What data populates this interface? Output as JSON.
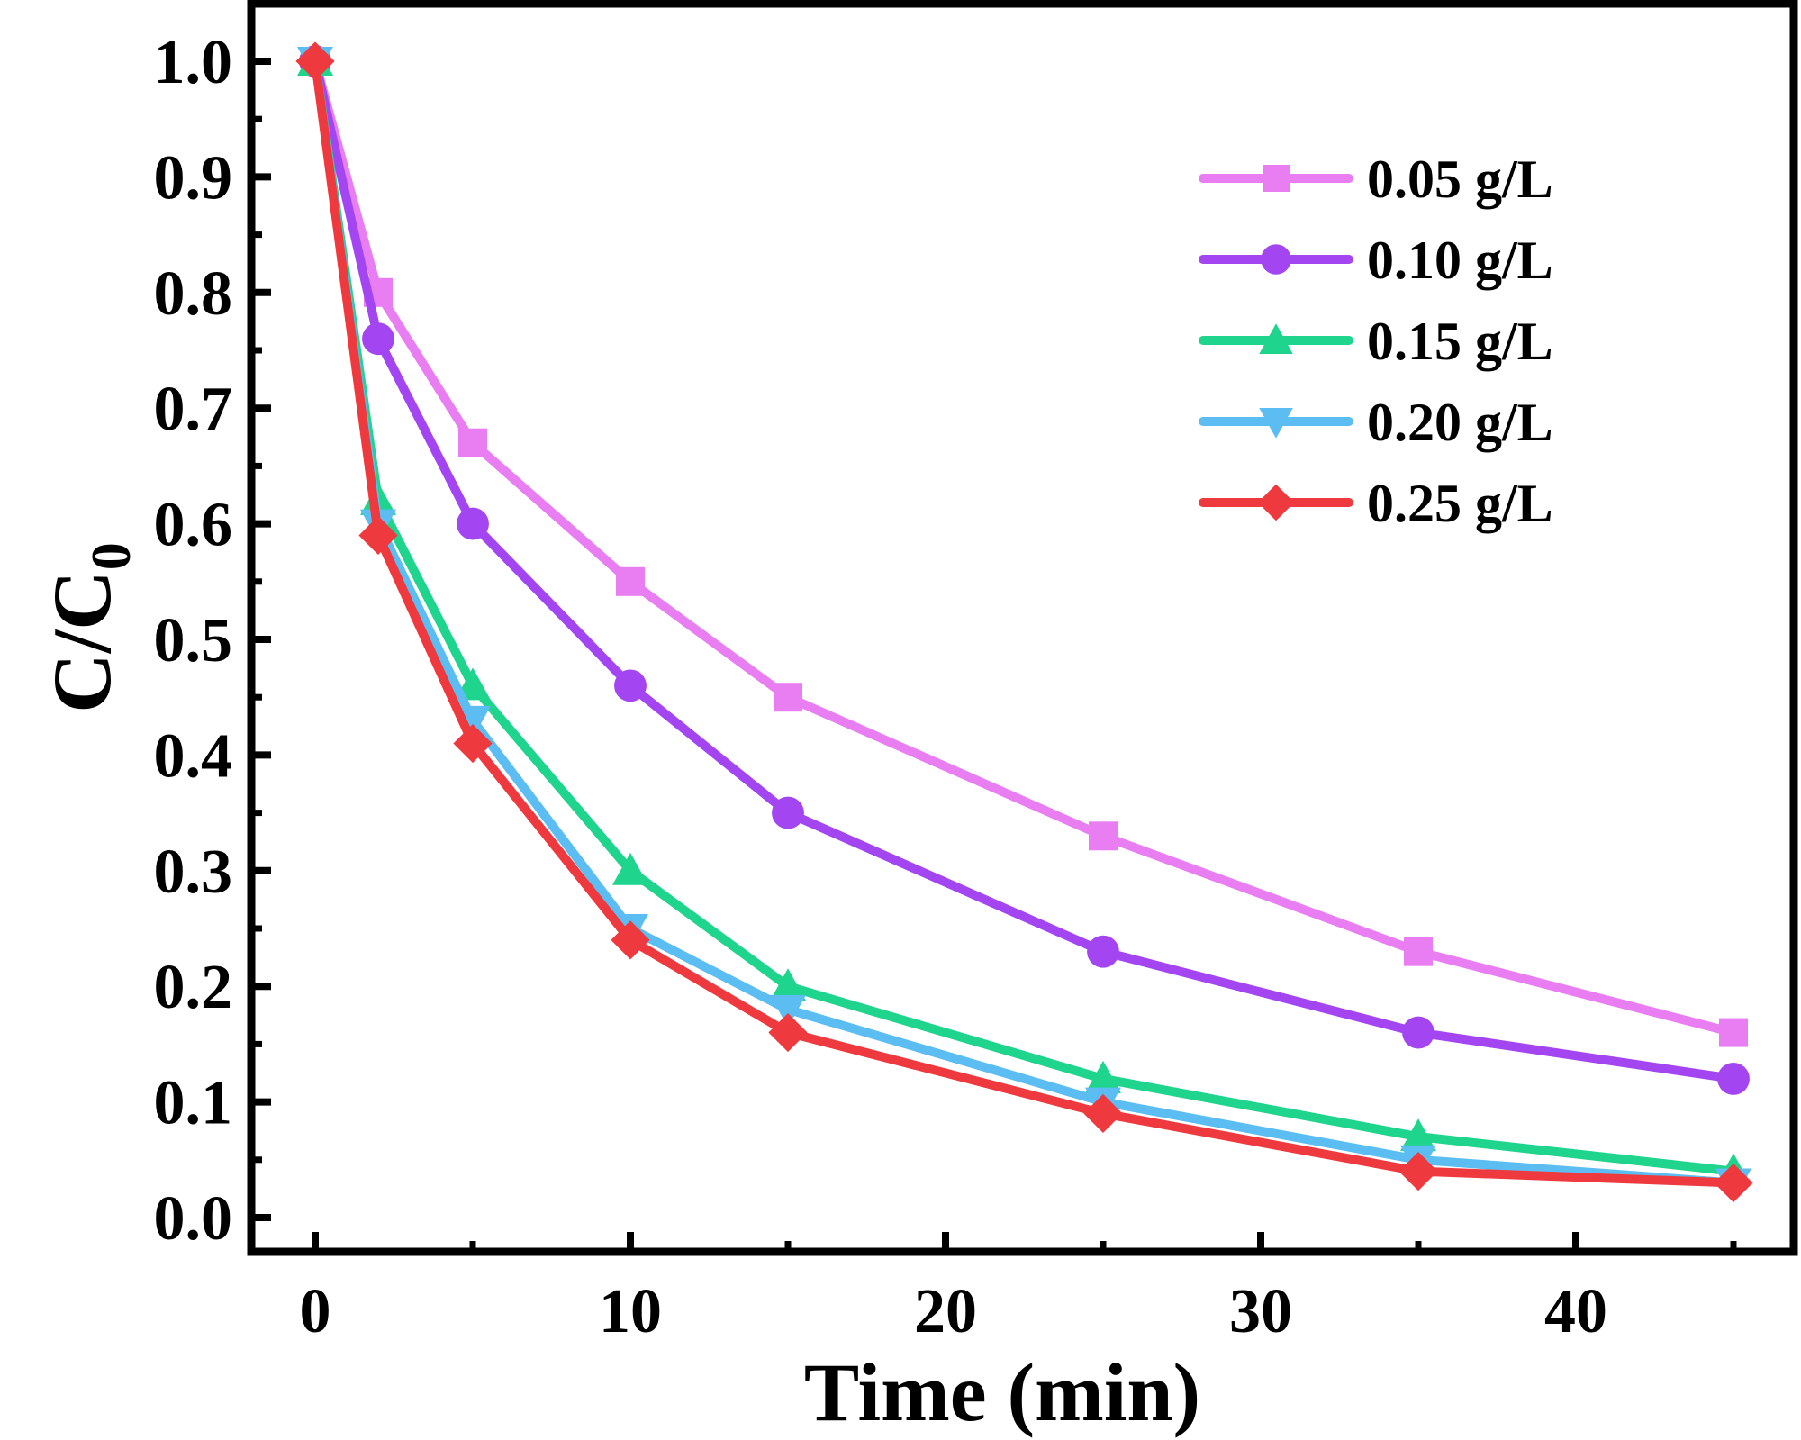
{
  "chart_data": {
    "type": "line",
    "title": "",
    "xlabel": "Time (min)",
    "ylabel": "C/C",
    "ylabel_subscript": "0",
    "xlim": [
      -2,
      46
    ],
    "ylim": [
      -0.02,
      1.05
    ],
    "x_ticks": [
      0,
      10,
      20,
      30,
      40
    ],
    "x_tick_labels": [
      "0",
      "10",
      "20",
      "30",
      "40"
    ],
    "x_minor_ticks": [
      5,
      15,
      25,
      35,
      45
    ],
    "y_ticks": [
      0.0,
      0.1,
      0.2,
      0.3,
      0.4,
      0.5,
      0.6,
      0.7,
      0.8,
      0.9,
      1.0
    ],
    "y_tick_labels": [
      "0.0",
      "0.1",
      "0.2",
      "0.3",
      "0.4",
      "0.5",
      "0.6",
      "0.7",
      "0.8",
      "0.9",
      "1.0"
    ],
    "grid": false,
    "legend_position": "top-right",
    "x": [
      0,
      2,
      5,
      10,
      15,
      25,
      35,
      45
    ],
    "series": [
      {
        "name": "0.05 g/L",
        "color": "#e97ef2",
        "marker": "square",
        "values": [
          1.0,
          0.8,
          0.67,
          0.55,
          0.45,
          0.33,
          0.23,
          0.16
        ]
      },
      {
        "name": "0.10 g/L",
        "color": "#a346f2",
        "marker": "circle",
        "values": [
          1.0,
          0.76,
          0.6,
          0.46,
          0.35,
          0.23,
          0.16,
          0.12
        ]
      },
      {
        "name": "0.15 g/L",
        "color": "#1fd48c",
        "marker": "triangle-up",
        "values": [
          1.0,
          0.62,
          0.46,
          0.3,
          0.2,
          0.12,
          0.07,
          0.04
        ]
      },
      {
        "name": "0.20 g/L",
        "color": "#5bbdf2",
        "marker": "triangle-down",
        "values": [
          1.0,
          0.6,
          0.43,
          0.25,
          0.18,
          0.1,
          0.05,
          0.03
        ]
      },
      {
        "name": "0.25 g/L",
        "color": "#ee3a3e",
        "marker": "diamond",
        "values": [
          1.0,
          0.59,
          0.41,
          0.24,
          0.16,
          0.09,
          0.04,
          0.03
        ]
      }
    ]
  }
}
